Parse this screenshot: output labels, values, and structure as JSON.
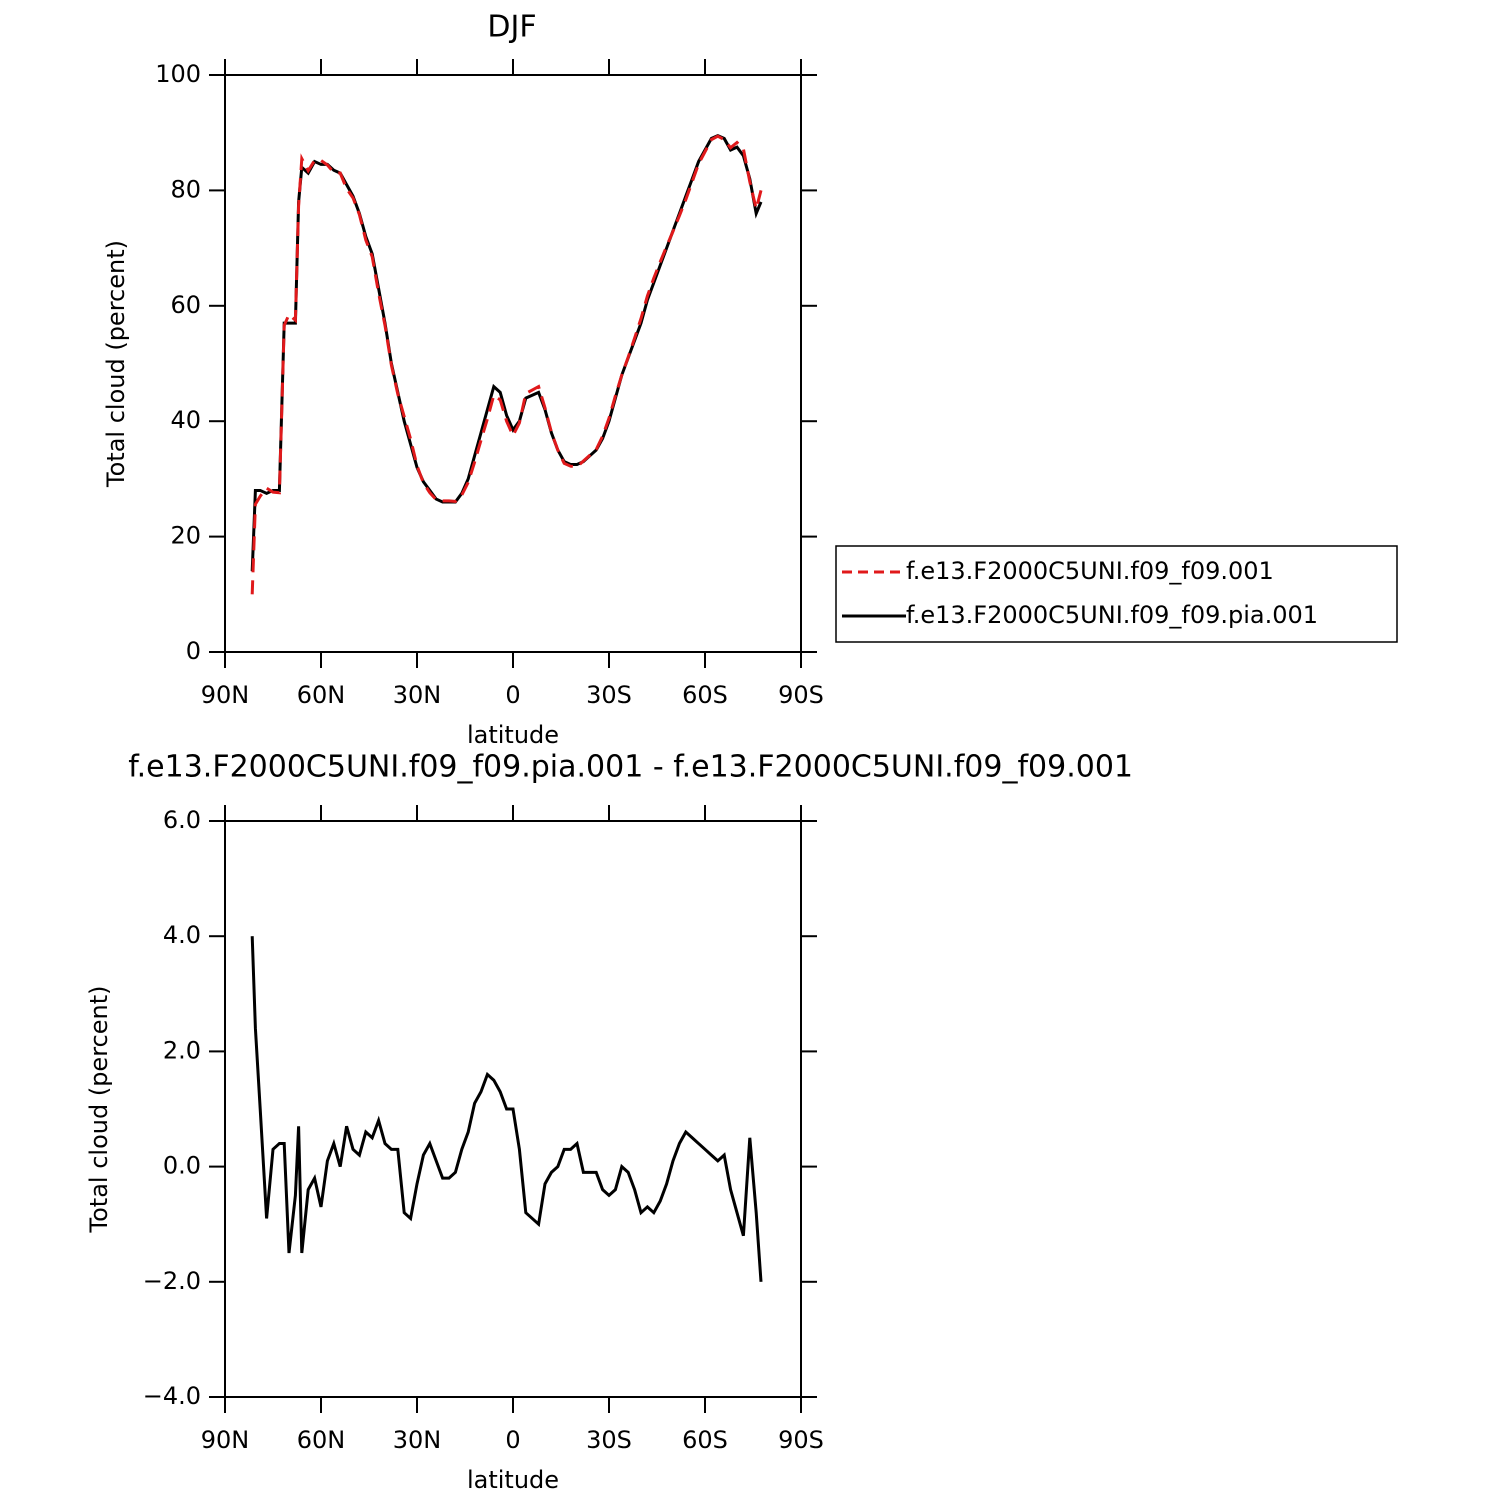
{
  "chart_data": [
    {
      "type": "line",
      "title": "DJF",
      "xlabel": "latitude",
      "ylabel": "Total cloud (percent)",
      "x": [
        81.5,
        80.5,
        79,
        77,
        75,
        73,
        71.5,
        70,
        68,
        67,
        66,
        64,
        62,
        60,
        58,
        56,
        54,
        52,
        50,
        48,
        46,
        44,
        42,
        40,
        38,
        36,
        34,
        32,
        30,
        28,
        26,
        24,
        22,
        20,
        18,
        16,
        14,
        12,
        10,
        8,
        6,
        4,
        2,
        0,
        -2,
        -4,
        -6,
        -8,
        -10,
        -12,
        -14,
        -16,
        -18,
        -20,
        -22,
        -24,
        -26,
        -28,
        -30,
        -32,
        -34,
        -36,
        -38,
        -40,
        -42,
        -44,
        -46,
        -48,
        -50,
        -52,
        -54,
        -56,
        -58,
        -60,
        -62,
        -64,
        -66,
        -68,
        -70,
        -72,
        -74,
        -76,
        -77.5
      ],
      "series": [
        {
          "name": "f.e13.F2000C5UNI.f09_f09.001",
          "color": "#e0191b",
          "dashed": true,
          "values": [
            10,
            25.6,
            27,
            28.4,
            27.7,
            27.6,
            56.6,
            58.5,
            57.5,
            77.3,
            85.5,
            83.4,
            85.2,
            85.2,
            84.4,
            83.1,
            83,
            80.3,
            78.7,
            75.8,
            71.4,
            68.5,
            62.2,
            56.6,
            49.7,
            44.7,
            40.8,
            36.9,
            32.3,
            29.3,
            27.6,
            26.4,
            26.2,
            26.2,
            26.1,
            27.2,
            29.4,
            32.9,
            36.7,
            40.4,
            44.5,
            43.7,
            40,
            37.5,
            39.7,
            44.8,
            45.4,
            46,
            42.3,
            38.1,
            35,
            32.7,
            32.2,
            32.1,
            33.1,
            34.1,
            35.1,
            37.4,
            40.5,
            44.4,
            48,
            51.1,
            54.4,
            57.8,
            61.7,
            64.8,
            67.6,
            70.3,
            72.9,
            75.6,
            78.4,
            81.5,
            84.6,
            86.7,
            88.8,
            89.4,
            88.8,
            87.4,
            88.3,
            87.2,
            81.5,
            76.8,
            80
          ]
        },
        {
          "name": "f.e13.F2000C5UNI.f09_f09.pia.001",
          "color": "#000000",
          "dashed": false,
          "values": [
            14,
            28,
            28,
            27.5,
            28,
            28,
            57,
            57,
            57,
            78,
            84,
            83,
            85,
            84.5,
            84.5,
            83.5,
            83,
            81,
            79,
            76,
            72,
            69,
            63,
            57,
            50,
            45,
            40,
            36,
            32,
            29.5,
            28,
            26.5,
            26,
            26,
            26,
            27.5,
            30,
            34,
            38,
            42,
            46,
            45,
            41,
            38.5,
            40,
            44,
            44.5,
            45,
            42,
            38,
            35,
            33,
            32.5,
            32.5,
            33,
            34,
            35,
            37,
            40,
            44,
            48,
            51,
            54,
            57,
            61,
            64,
            67,
            70,
            73,
            76,
            79,
            82,
            85,
            87,
            89,
            89.5,
            89,
            87,
            87.5,
            86,
            82,
            76,
            78
          ]
        }
      ],
      "xlim": [
        90,
        -90
      ],
      "xticks": [
        {
          "value": 90,
          "label": "90N"
        },
        {
          "value": 60,
          "label": "60N"
        },
        {
          "value": 30,
          "label": "30N"
        },
        0,
        {
          "value": -30,
          "label": "30S"
        },
        {
          "value": -60,
          "label": "60S"
        },
        {
          "value": -90,
          "label": "90S"
        }
      ],
      "ylim": [
        0,
        100
      ],
      "yticks": [
        0,
        20,
        40,
        60,
        80,
        100
      ],
      "legend_position": "right"
    },
    {
      "type": "line",
      "title": "f.e13.F2000C5UNI.f09_f09.pia.001 - f.e13.F2000C5UNI.f09_f09.001",
      "xlabel": "latitude",
      "ylabel": "Total cloud (percent)",
      "x": [
        81.5,
        80.5,
        79,
        77,
        75,
        73,
        71.5,
        70,
        68,
        67,
        66,
        64,
        62,
        60,
        58,
        56,
        54,
        52,
        50,
        48,
        46,
        44,
        42,
        40,
        38,
        36,
        34,
        32,
        30,
        28,
        26,
        24,
        22,
        20,
        18,
        16,
        14,
        12,
        10,
        8,
        6,
        4,
        2,
        0,
        -2,
        -4,
        -6,
        -8,
        -10,
        -12,
        -14,
        -16,
        -18,
        -20,
        -22,
        -24,
        -26,
        -28,
        -30,
        -32,
        -34,
        -36,
        -38,
        -40,
        -42,
        -44,
        -46,
        -48,
        -50,
        -52,
        -54,
        -56,
        -58,
        -60,
        -62,
        -64,
        -66,
        -68,
        -70,
        -72,
        -74,
        -76,
        -77.5
      ],
      "color": "#000000",
      "values": [
        4.0,
        2.4,
        1.0,
        -0.9,
        0.3,
        0.4,
        0.4,
        -1.5,
        -0.5,
        0.7,
        -1.5,
        -0.4,
        -0.2,
        -0.7,
        0.1,
        0.4,
        0.0,
        0.7,
        0.3,
        0.2,
        0.6,
        0.5,
        0.8,
        0.4,
        0.3,
        0.3,
        -0.8,
        -0.9,
        -0.3,
        0.2,
        0.4,
        0.1,
        -0.2,
        -0.2,
        -0.1,
        0.3,
        0.6,
        1.1,
        1.3,
        1.6,
        1.5,
        1.3,
        1.0,
        1.0,
        0.3,
        -0.8,
        -0.9,
        -1.0,
        -0.3,
        -0.1,
        0.0,
        0.3,
        0.3,
        0.4,
        -0.1,
        -0.1,
        -0.1,
        -0.4,
        -0.5,
        -0.4,
        0.0,
        -0.1,
        -0.4,
        -0.8,
        -0.7,
        -0.8,
        -0.6,
        -0.3,
        0.1,
        0.4,
        0.6,
        0.5,
        0.4,
        0.3,
        0.2,
        0.1,
        0.2,
        -0.4,
        -0.8,
        -1.2,
        0.5,
        -0.8,
        -2.0
      ],
      "xlim": [
        90,
        -90
      ],
      "xticks": [
        {
          "value": 90,
          "label": "90N"
        },
        {
          "value": 60,
          "label": "60N"
        },
        {
          "value": 30,
          "label": "30N"
        },
        0,
        {
          "value": -30,
          "label": "30S"
        },
        {
          "value": -60,
          "label": "60S"
        },
        {
          "value": -90,
          "label": "90S"
        }
      ],
      "ylim": [
        -4,
        6
      ],
      "yticks": [
        {
          "value": -4,
          "label": "−4.0"
        },
        {
          "value": -2,
          "label": "−2.0"
        },
        {
          "value": 0,
          "label": "0.0"
        },
        {
          "value": 2,
          "label": "2.0"
        },
        {
          "value": 4,
          "label": "4.0"
        },
        {
          "value": 6,
          "label": "6.0"
        }
      ]
    }
  ]
}
